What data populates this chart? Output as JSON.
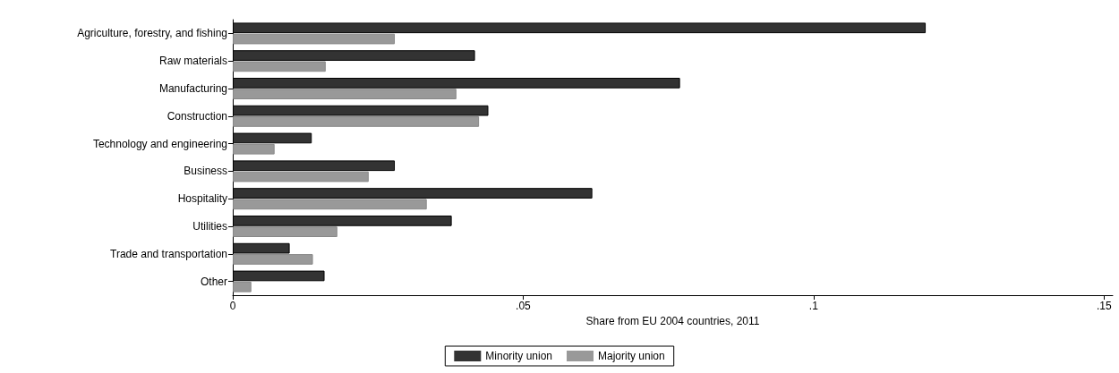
{
  "chart_data": {
    "type": "bar",
    "orientation": "horizontal",
    "xlabel": "Share from EU 2004 countries, 2011",
    "categories": [
      "Agriculture, forestry, and fishing",
      "Raw materials",
      "Manufacturing",
      "Construction",
      "Technology and engineering",
      "Business",
      "Hospitality",
      "Utilities",
      "Trade and transportation",
      "Other"
    ],
    "series": [
      {
        "name": "Minority union",
        "color": "#333333",
        "values": [
          0.1193,
          0.0417,
          0.077,
          0.044,
          0.0136,
          0.0279,
          0.0619,
          0.0377,
          0.0098,
          0.0158
        ]
      },
      {
        "name": "Majority union",
        "color": "#999999",
        "values": [
          0.0279,
          0.016,
          0.0385,
          0.0424,
          0.0072,
          0.0234,
          0.0334,
          0.018,
          0.0138,
          0.0032
        ]
      }
    ],
    "xlim": [
      0,
      0.1515
    ],
    "xticks": [
      0,
      {
        "value": 0.05,
        "label": ".05"
      },
      {
        "value": 0.1,
        "label": ".1"
      },
      {
        "value": 0.15,
        "label": ".15"
      }
    ],
    "grid": false,
    "legend": "bottom"
  }
}
